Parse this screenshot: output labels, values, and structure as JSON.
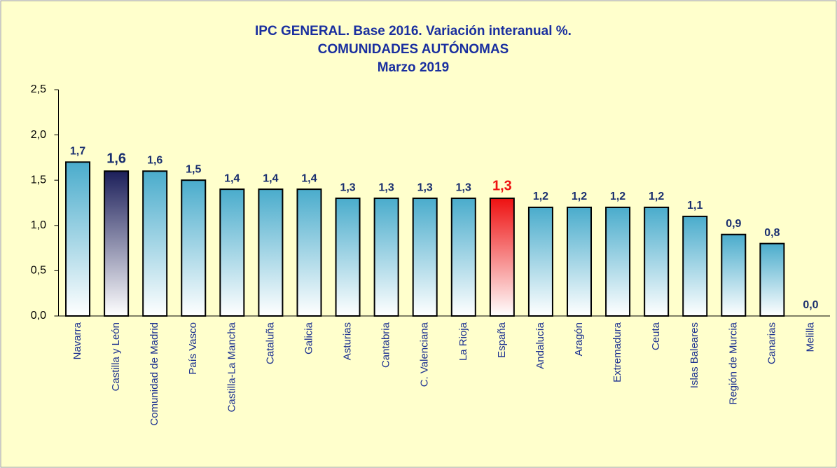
{
  "chart_data": {
    "type": "bar",
    "title": [
      "IPC GENERAL. Base 2016. Variación interanual %.",
      "COMUNIDADES AUTÓNOMAS",
      "Marzo 2019"
    ],
    "categories": [
      "Navarra",
      "Castilla y León",
      "Comunidad de Madrid",
      "País Vasco",
      "Castilla-La Mancha",
      "Cataluña",
      "Galicia",
      "Asturias",
      "Cantabria",
      "C. Valenciana",
      "La Rioja",
      "España",
      "Andalucía",
      "Aragón",
      "Extremadura",
      "Ceuta",
      "Islas Baleares",
      "Región de Murcia",
      "Canarias",
      "Melilla"
    ],
    "values": [
      1.7,
      1.6,
      1.6,
      1.5,
      1.4,
      1.4,
      1.4,
      1.3,
      1.3,
      1.3,
      1.3,
      1.3,
      1.2,
      1.2,
      1.2,
      1.2,
      1.1,
      0.9,
      0.8,
      0.0
    ],
    "value_labels": [
      "1,7",
      "1,6",
      "1,6",
      "1,5",
      "1,4",
      "1,4",
      "1,4",
      "1,3",
      "1,3",
      "1,3",
      "1,3",
      "1,3",
      "1,2",
      "1,2",
      "1,2",
      "1,2",
      "1,1",
      "0,9",
      "0,8",
      "0,0"
    ],
    "colors": [
      "#4aaccc",
      "#1c1f5a",
      "#4aaccc",
      "#4aaccc",
      "#4aaccc",
      "#4aaccc",
      "#4aaccc",
      "#4aaccc",
      "#4aaccc",
      "#4aaccc",
      "#4aaccc",
      "#ee1111",
      "#4aaccc",
      "#4aaccc",
      "#4aaccc",
      "#4aaccc",
      "#4aaccc",
      "#4aaccc",
      "#4aaccc",
      "#4aaccc"
    ],
    "value_label_colors": [
      "#1a2f6f",
      "#1a2f6f",
      "#1a2f6f",
      "#1a2f6f",
      "#1a2f6f",
      "#1a2f6f",
      "#1a2f6f",
      "#1a2f6f",
      "#1a2f6f",
      "#1a2f6f",
      "#1a2f6f",
      "#ee1111",
      "#1a2f6f",
      "#1a2f6f",
      "#1a2f6f",
      "#1a2f6f",
      "#1a2f6f",
      "#1a2f6f",
      "#1a2f6f",
      "#1a2f6f"
    ],
    "ylim": [
      0,
      2.5
    ],
    "yticks": [
      {
        "value": 0,
        "label": "0,0"
      },
      {
        "value": 0.5,
        "label": "0,5"
      },
      {
        "value": 1,
        "label": "1,0"
      },
      {
        "value": 1.5,
        "label": "1,5"
      },
      {
        "value": 2,
        "label": "2,0"
      },
      {
        "value": 2.5,
        "label": "2,5"
      }
    ],
    "grid": false
  }
}
